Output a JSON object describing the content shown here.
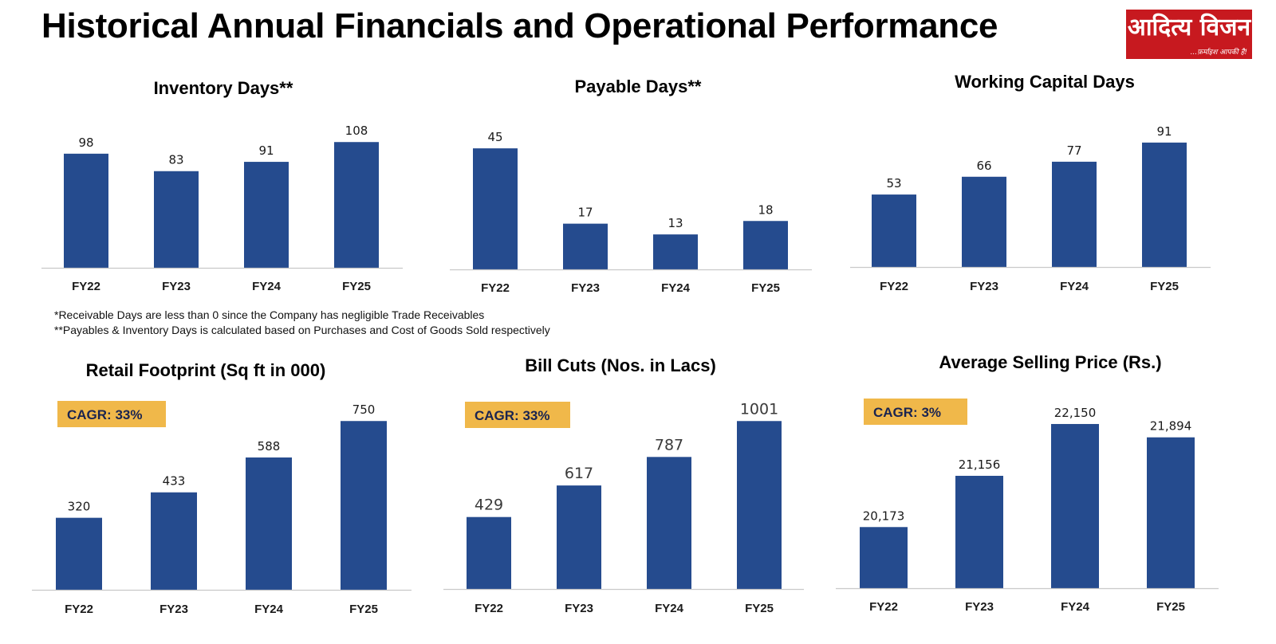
{
  "page": {
    "title": "Historical Annual Financials and Operational Performance"
  },
  "logo": {
    "name": "आदित्य विजन",
    "tagline": "...फ़र्माइश आपकी है!"
  },
  "footnotes": [
    "*Receivable Days are less than 0 since the Company has negligible Trade Receivables",
    "**Payables & Inventory Days is calculated based on Purchases and Cost of Goods Sold respectively"
  ],
  "colors": {
    "bar": "#254b8e",
    "cagr_badge": "#f0b84a",
    "logo_bg": "#c7191f"
  },
  "chart_data": [
    {
      "id": "inventory-days",
      "type": "bar",
      "title": "Inventory Days**",
      "categories": [
        "FY22",
        "FY23",
        "FY24",
        "FY25"
      ],
      "values": [
        98,
        83,
        91,
        108
      ],
      "labels": [
        "98",
        "83",
        "91",
        "108"
      ],
      "ylim": [
        0,
        115
      ],
      "xlabel": "",
      "ylabel": "",
      "grid": false,
      "legend": "none"
    },
    {
      "id": "payable-days",
      "type": "bar",
      "title": "Payable Days**",
      "categories": [
        "FY22",
        "FY23",
        "FY24",
        "FY25"
      ],
      "values": [
        45,
        17,
        13,
        18
      ],
      "labels": [
        "45",
        "17",
        "13",
        "18"
      ],
      "ylim": [
        0,
        48
      ],
      "xlabel": "",
      "ylabel": "",
      "grid": false,
      "legend": "none"
    },
    {
      "id": "working-capital-days",
      "type": "bar",
      "title": "Working Capital Days",
      "categories": [
        "FY22",
        "FY23",
        "FY24",
        "FY25"
      ],
      "values": [
        53,
        66,
        77,
        91
      ],
      "labels": [
        "53",
        "66",
        "77",
        "91"
      ],
      "ylim": [
        0,
        102
      ],
      "xlabel": "",
      "ylabel": "",
      "grid": false,
      "legend": "none"
    },
    {
      "id": "retail-footprint",
      "type": "bar",
      "title": "Retail Footprint (Sq ft in 000)",
      "categories": [
        "FY22",
        "FY23",
        "FY24",
        "FY25"
      ],
      "values": [
        320,
        433,
        588,
        750
      ],
      "labels": [
        "320",
        "433",
        "588",
        "750"
      ],
      "annotation": "CAGR: 33%",
      "ylim": [
        0,
        850
      ],
      "xlabel": "",
      "ylabel": "",
      "grid": false,
      "legend": "none"
    },
    {
      "id": "bill-cuts",
      "type": "bar",
      "title": "Bill Cuts (Nos. in Lacs)",
      "categories": [
        "FY22",
        "FY23",
        "FY24",
        "FY25"
      ],
      "values": [
        429,
        617,
        787,
        1001
      ],
      "labels": [
        "429",
        "617",
        "787",
        "1001"
      ],
      "annotation": "CAGR: 33%",
      "ylim": [
        0,
        1140
      ],
      "xlabel": "",
      "ylabel": "",
      "grid": false,
      "legend": "none"
    },
    {
      "id": "average-selling-price",
      "type": "bar",
      "title": "Average Selling Price (Rs.)",
      "categories": [
        "FY22",
        "FY23",
        "FY24",
        "FY25"
      ],
      "values": [
        20173,
        21156,
        22150,
        21894
      ],
      "labels": [
        "20,173",
        "21,156",
        "22,150",
        "21,894"
      ],
      "annotation": "CAGR: 3%",
      "ylim": [
        19000,
        22700
      ],
      "xlabel": "",
      "ylabel": "",
      "grid": false,
      "legend": "none"
    }
  ]
}
